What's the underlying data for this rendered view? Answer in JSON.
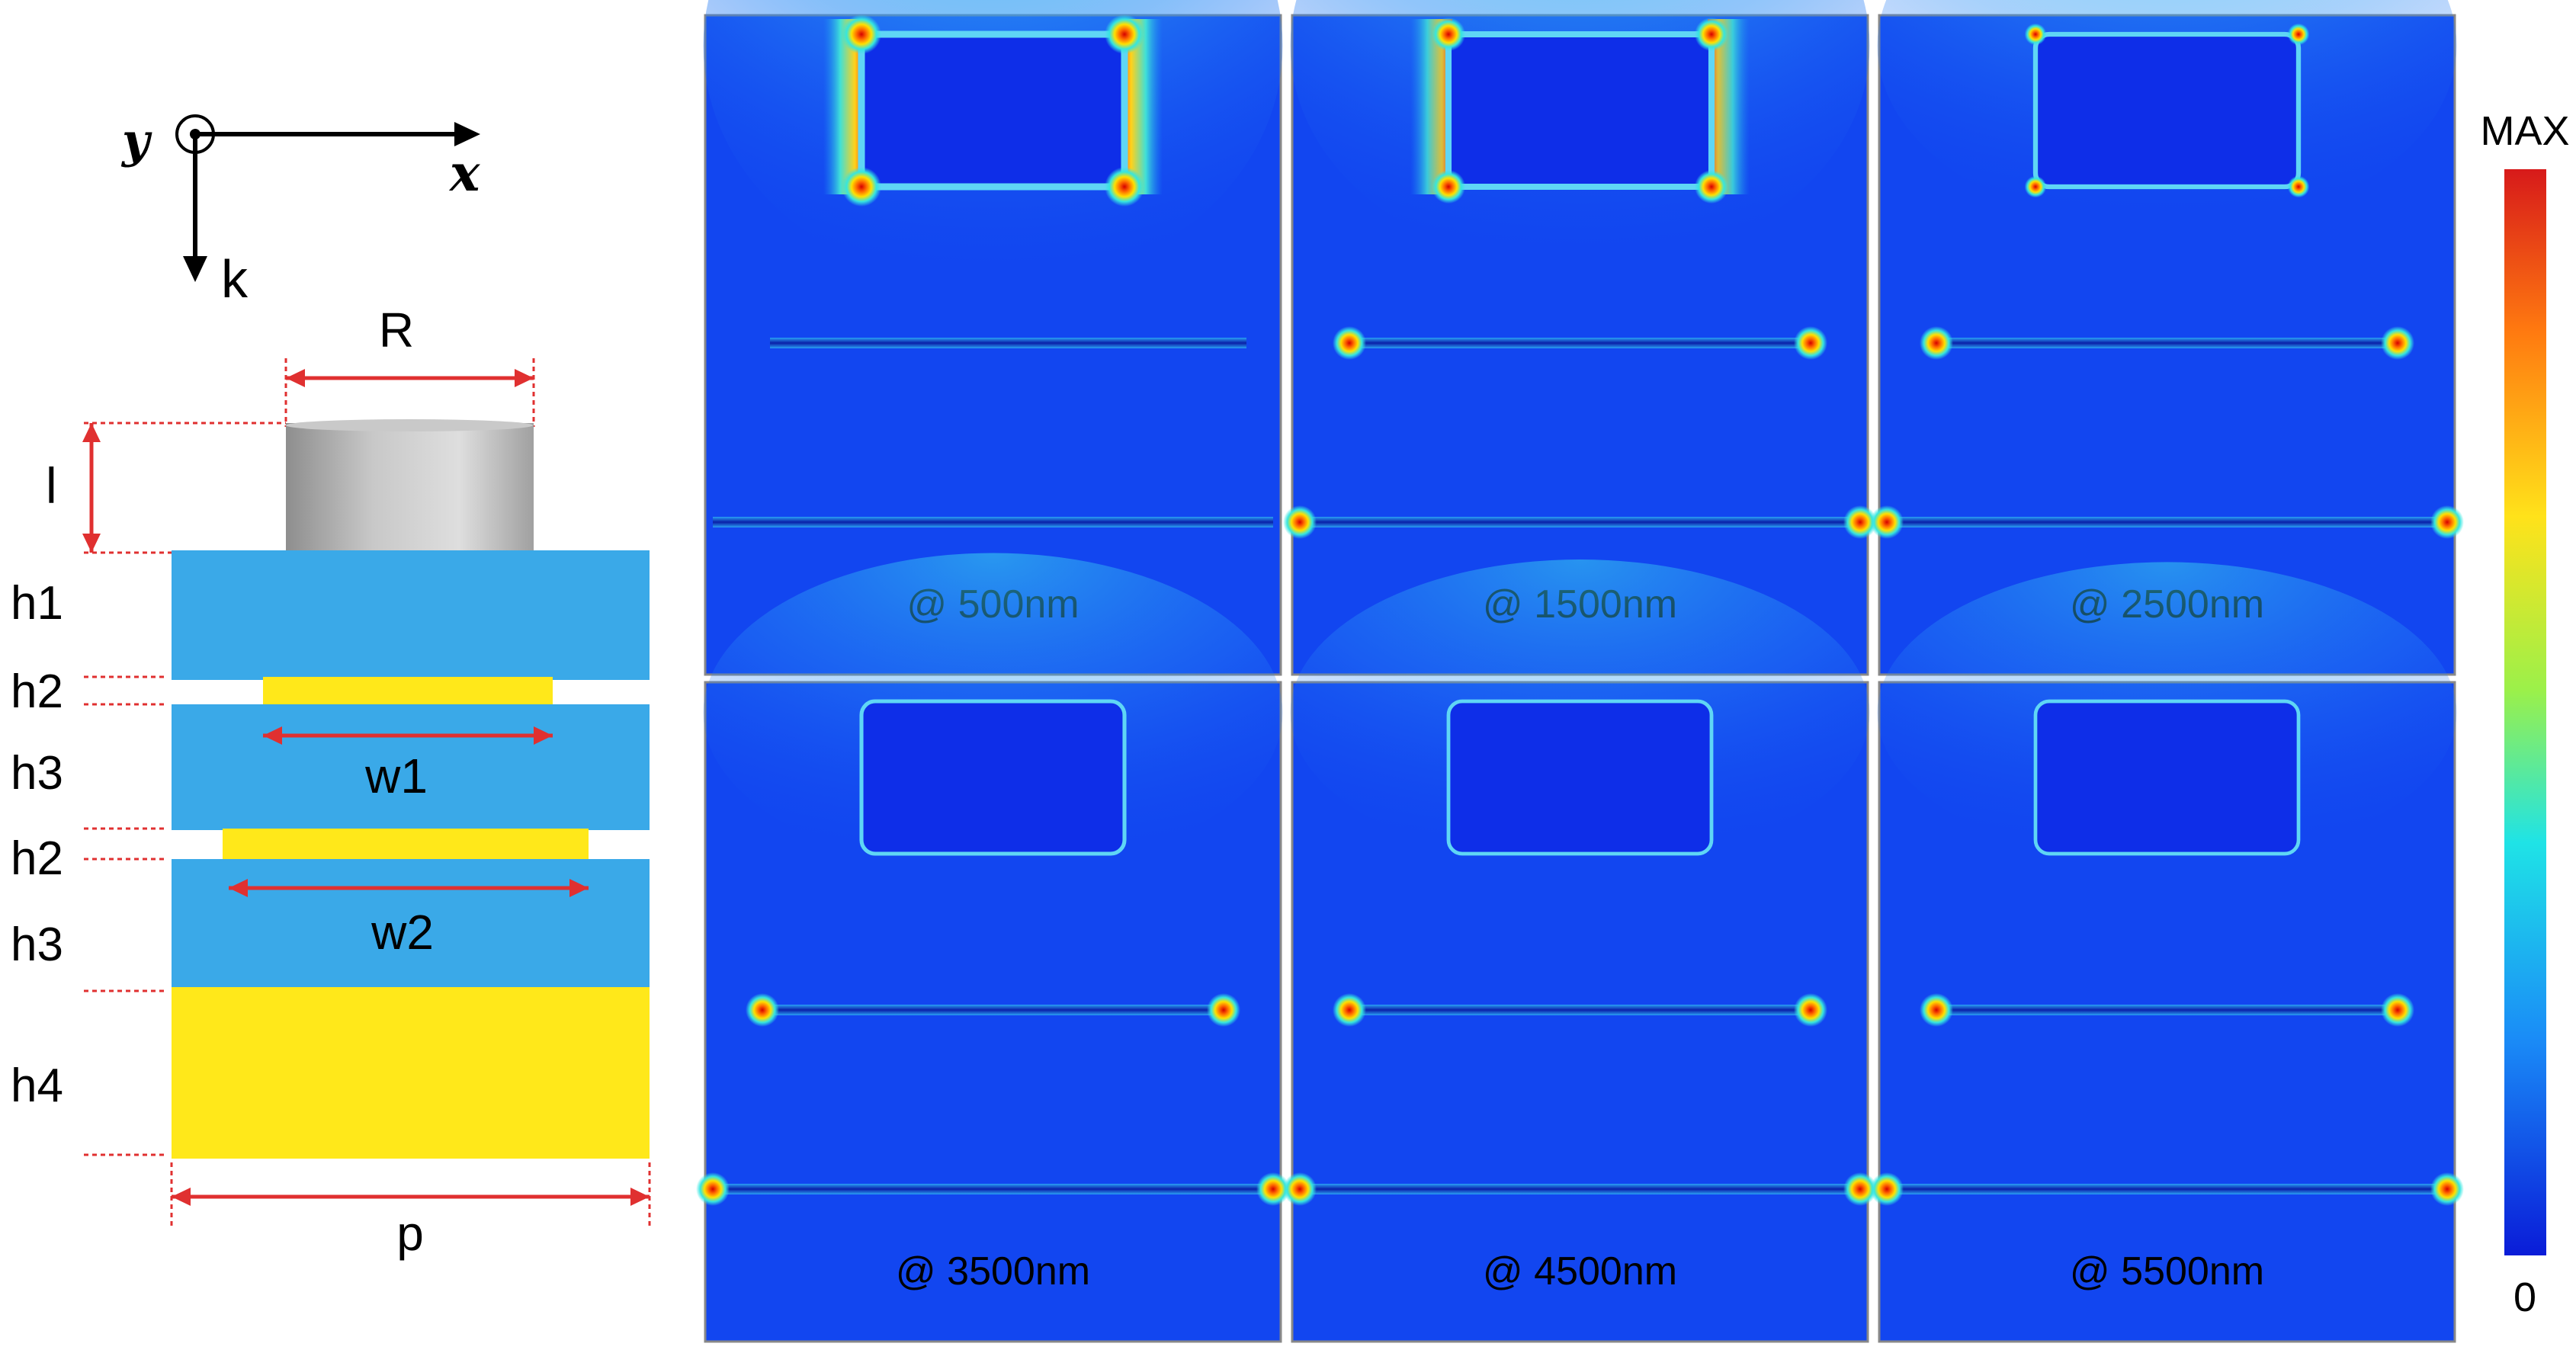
{
  "axes": {
    "y_label": "y",
    "x_label": "x",
    "k_label": "k"
  },
  "structure": {
    "R": "R",
    "l": "l",
    "h1": "h1",
    "h2_top": "h2",
    "h3_top": "h3",
    "h2_bottom": "h2",
    "h3_bottom": "h3",
    "h4": "h4",
    "w1": "w1",
    "w2": "w2",
    "p": "p"
  },
  "panels": [
    {
      "label": "@ 500nm",
      "intensity": 1.0
    },
    {
      "label": "@ 1500nm",
      "intensity": 0.85
    },
    {
      "label": "@ 2500nm",
      "intensity": 0.55
    },
    {
      "label": "@ 3500nm",
      "intensity": 0.35
    },
    {
      "label": "@ 4500nm",
      "intensity": 0.3
    },
    {
      "label": "@ 5500nm",
      "intensity": 0.28
    }
  ],
  "colorbar": {
    "max_label": "MAX",
    "min_label": "0"
  },
  "colors": {
    "dielectric": "#3aa9e8",
    "metal": "#ffe81a",
    "cylinder": "#b5b5b5",
    "dimension": "#e03030",
    "field_bg": "#1246f0",
    "field_dark": "#0a1fc8"
  }
}
